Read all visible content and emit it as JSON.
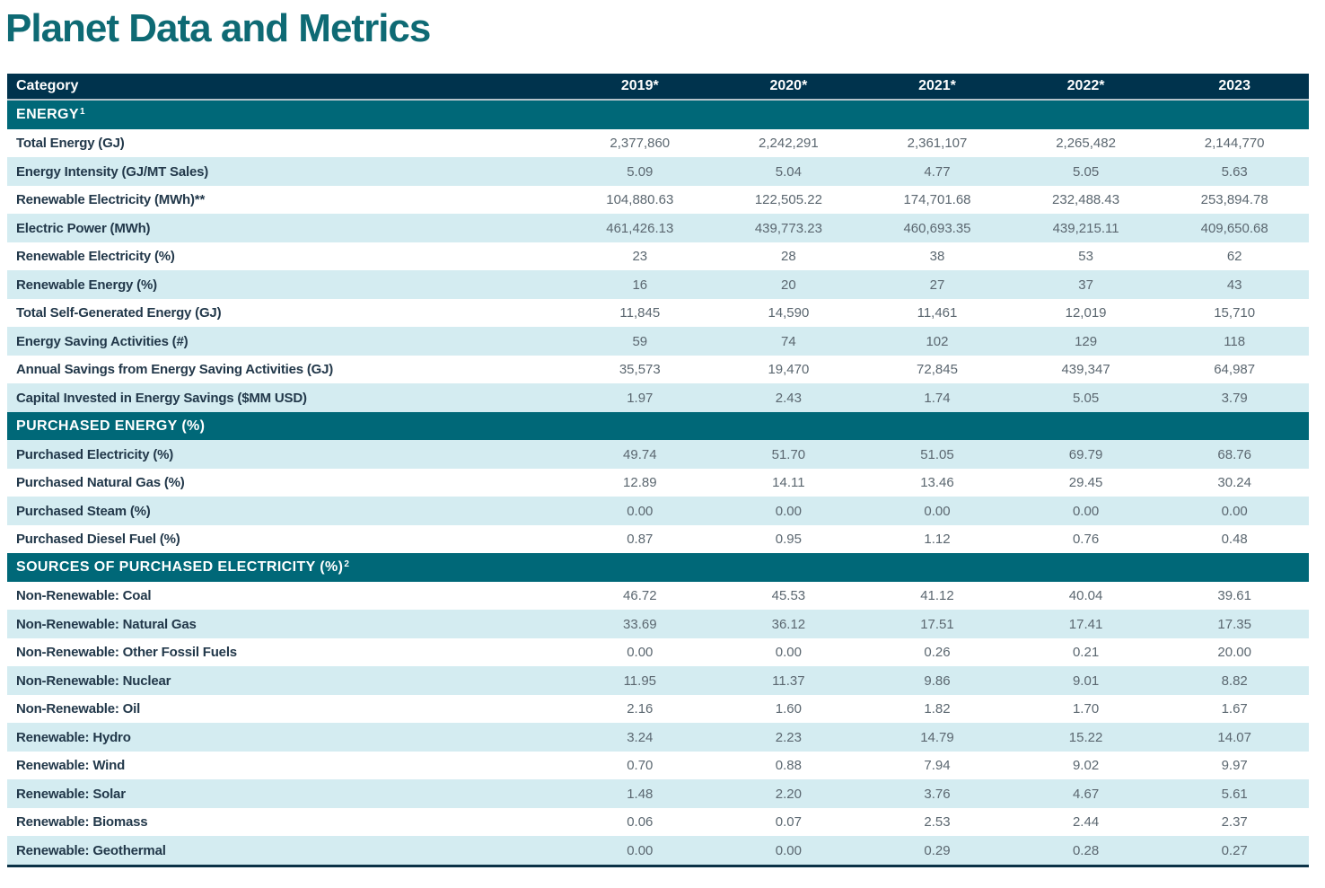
{
  "page": {
    "title": "Planet Data and Metrics"
  },
  "colors": {
    "title_teal": "#0e6a74",
    "header_navy": "#00334d",
    "section_teal": "#006878",
    "stripe_blue": "#d4ecf1",
    "label_text": "#22384a",
    "value_text": "#5b6770",
    "bottom_border": "#0b3246",
    "header_divider": "#b5c3ca"
  },
  "table": {
    "category_header": "Category",
    "year_headers": [
      "2019*",
      "2020*",
      "2021*",
      "2022*",
      "2023"
    ],
    "sections": [
      {
        "title": "ENERGY",
        "sup": "1",
        "rows": [
          {
            "label": "Total Energy (GJ)",
            "values": [
              "2,377,860",
              "2,242,291",
              "2,361,107",
              "2,265,482",
              "2,144,770"
            ]
          },
          {
            "label": "Energy Intensity (GJ/MT Sales)",
            "values": [
              "5.09",
              "5.04",
              "4.77",
              "5.05",
              "5.63"
            ]
          },
          {
            "label": "Renewable Electricity (MWh)**",
            "values": [
              "104,880.63",
              "122,505.22",
              "174,701.68",
              "232,488.43",
              "253,894.78"
            ]
          },
          {
            "label": "Electric Power (MWh)",
            "values": [
              "461,426.13",
              "439,773.23",
              "460,693.35",
              "439,215.11",
              "409,650.68"
            ]
          },
          {
            "label": "Renewable Electricity (%)",
            "values": [
              "23",
              "28",
              "38",
              "53",
              "62"
            ]
          },
          {
            "label": "Renewable Energy (%)",
            "values": [
              "16",
              "20",
              "27",
              "37",
              "43"
            ]
          },
          {
            "label": "Total Self-Generated Energy (GJ)",
            "values": [
              "11,845",
              "14,590",
              "11,461",
              "12,019",
              "15,710"
            ]
          },
          {
            "label": "Energy Saving Activities (#)",
            "values": [
              "59",
              "74",
              "102",
              "129",
              "118"
            ]
          },
          {
            "label": "Annual Savings from Energy Saving Activities (GJ)",
            "values": [
              "35,573",
              "19,470",
              "72,845",
              "439,347",
              "64,987"
            ]
          },
          {
            "label": "Capital Invested in Energy Savings ($MM USD)",
            "values": [
              "1.97",
              "2.43",
              "1.74",
              "5.05",
              "3.79"
            ]
          }
        ]
      },
      {
        "title": "PURCHASED ENERGY (%)",
        "sup": "",
        "rows": [
          {
            "label": "Purchased Electricity (%)",
            "values": [
              "49.74",
              "51.70",
              "51.05",
              "69.79",
              "68.76"
            ]
          },
          {
            "label": "Purchased Natural Gas (%)",
            "values": [
              "12.89",
              "14.11",
              "13.46",
              "29.45",
              "30.24"
            ]
          },
          {
            "label": "Purchased Steam (%)",
            "values": [
              "0.00",
              "0.00",
              "0.00",
              "0.00",
              "0.00"
            ]
          },
          {
            "label": "Purchased Diesel Fuel (%)",
            "values": [
              "0.87",
              "0.95",
              "1.12",
              "0.76",
              "0.48"
            ]
          }
        ]
      },
      {
        "title": "SOURCES OF PURCHASED ELECTRICITY (%)",
        "sup": "2",
        "rows": [
          {
            "label": "Non-Renewable: Coal",
            "values": [
              "46.72",
              "45.53",
              "41.12",
              "40.04",
              "39.61"
            ]
          },
          {
            "label": "Non-Renewable: Natural Gas",
            "values": [
              "33.69",
              "36.12",
              "17.51",
              "17.41",
              "17.35"
            ]
          },
          {
            "label": "Non-Renewable: Other Fossil Fuels",
            "values": [
              "0.00",
              "0.00",
              "0.26",
              "0.21",
              "20.00"
            ]
          },
          {
            "label": "Non-Renewable: Nuclear",
            "values": [
              "11.95",
              "11.37",
              "9.86",
              "9.01",
              "8.82"
            ]
          },
          {
            "label": "Non-Renewable: Oil",
            "values": [
              "2.16",
              "1.60",
              "1.82",
              "1.70",
              "1.67"
            ]
          },
          {
            "label": "Renewable: Hydro",
            "values": [
              "3.24",
              "2.23",
              "14.79",
              "15.22",
              "14.07"
            ]
          },
          {
            "label": "Renewable: Wind",
            "values": [
              "0.70",
              "0.88",
              "7.94",
              "9.02",
              "9.97"
            ]
          },
          {
            "label": "Renewable: Solar",
            "values": [
              "1.48",
              "2.20",
              "3.76",
              "4.67",
              "5.61"
            ]
          },
          {
            "label": "Renewable: Biomass",
            "values": [
              "0.06",
              "0.07",
              "2.53",
              "2.44",
              "2.37"
            ]
          },
          {
            "label": "Renewable: Geothermal",
            "values": [
              "0.00",
              "0.00",
              "0.29",
              "0.28",
              "0.27"
            ]
          }
        ]
      }
    ]
  }
}
